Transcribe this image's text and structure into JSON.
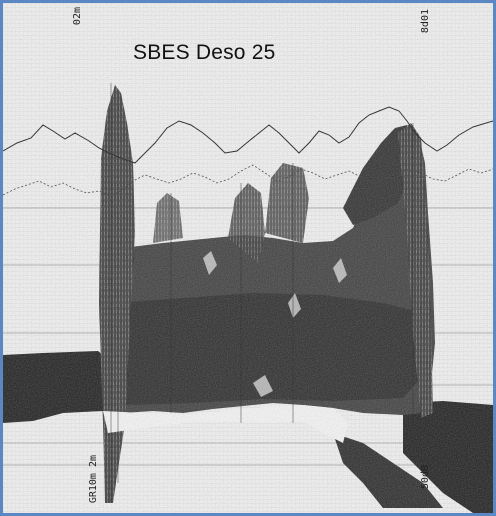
{
  "figure": {
    "title": "SBES Deso 25",
    "marks": {
      "top_left": "02m",
      "top_right": "8d01",
      "bottom_left": "GR10m 2m",
      "bottom_right": "50dB"
    }
  },
  "colors": {
    "frame": "#5b87c4",
    "paper": "#f2f2f2",
    "ink": "#1a1a1a"
  }
}
